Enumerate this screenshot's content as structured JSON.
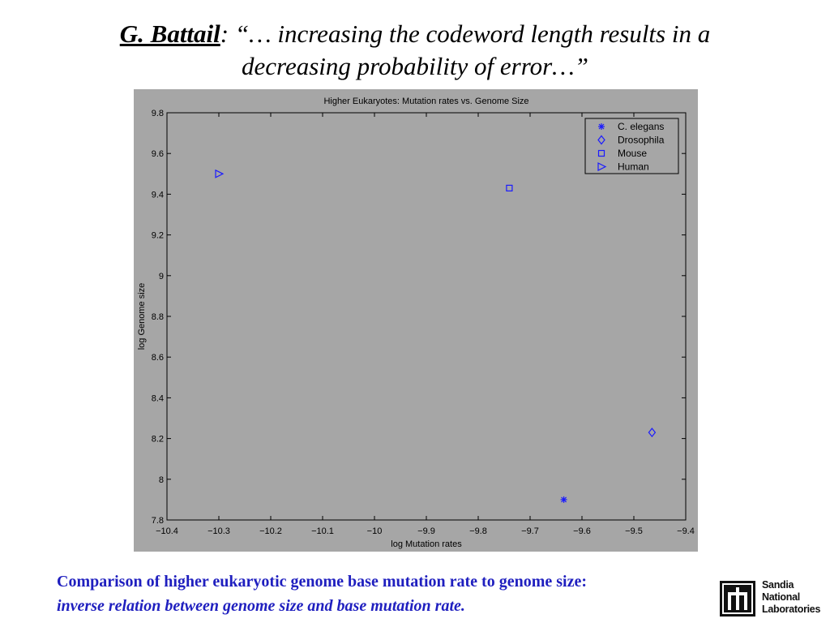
{
  "slide": {
    "title_author": "G. Battail",
    "title_quote": ": “… increasing the codeword length results in a",
    "title_quote_line2": "decreasing probability of error…”",
    "caption_line1": "Comparison of higher eukaryotic genome base mutation rate to genome size:",
    "caption_line2": "inverse relation between genome size and base mutation rate.",
    "logo": {
      "icon": "sandia-thunderbird-logo-icon",
      "line1": "Sandia",
      "line2": "National",
      "line3": "Laboratories"
    }
  },
  "chart_data": {
    "type": "scatter",
    "title": "Higher Eukaryotes: Mutation rates vs. Genome Size",
    "xlabel": "log Mutation rates",
    "ylabel": "log Genome size",
    "xlim": [
      -10.4,
      -9.4
    ],
    "ylim": [
      7.8,
      9.8
    ],
    "xticks": [
      -10.4,
      -10.3,
      -10.2,
      -10.1,
      -10,
      -9.9,
      -9.8,
      -9.7,
      -9.6,
      -9.5,
      -9.4
    ],
    "xtick_labels": [
      "−10.4",
      "−10.3",
      "−10.2",
      "−10.1",
      "−10",
      "−9.9",
      "−9.8",
      "−9.7",
      "−9.6",
      "−9.5",
      "−9.4"
    ],
    "yticks": [
      7.8,
      8,
      8.2,
      8.4,
      8.6,
      8.8,
      9,
      9.2,
      9.4,
      9.6,
      9.8
    ],
    "ytick_labels": [
      "7.8",
      "8",
      "8.2",
      "8.4",
      "8.6",
      "8.8",
      "9",
      "9.2",
      "9.4",
      "9.6",
      "9.8"
    ],
    "grid": false,
    "legend_position": "top-right",
    "colors": {
      "background": "#a6a6a6",
      "marker": "#1a1aff",
      "axis": "#000000"
    },
    "series": [
      {
        "name": "C. elegans",
        "marker": "star",
        "x": [
          -9.635
        ],
        "y": [
          7.9
        ]
      },
      {
        "name": "Drosophila",
        "marker": "diamond",
        "x": [
          -9.465
        ],
        "y": [
          8.23
        ]
      },
      {
        "name": "Mouse",
        "marker": "square",
        "x": [
          -9.74
        ],
        "y": [
          9.43
        ]
      },
      {
        "name": "Human",
        "marker": "triangle-right",
        "x": [
          -10.3
        ],
        "y": [
          9.5
        ]
      }
    ]
  }
}
